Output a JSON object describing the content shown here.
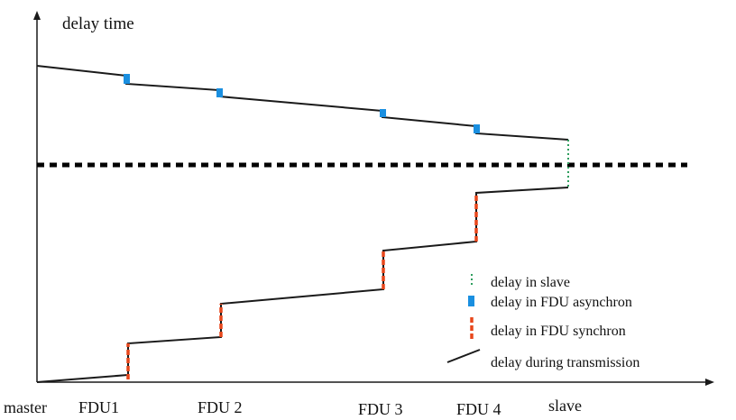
{
  "diagram": {
    "y_axis_label": "delay time",
    "x_axis_labels": [
      "master",
      "FDU1",
      "FDU 2",
      "FDU 3",
      "FDU 4",
      "slave"
    ],
    "legend": {
      "slave": "delay in slave",
      "async": "delay in FDU asynchron",
      "sync": "delay in FDU synchron",
      "transmission": "delay during transmission"
    },
    "colors": {
      "line": "#1a1a1a",
      "dotted": "#000000",
      "slave": "#2e9e5e",
      "async": "#1a8fe0",
      "sync": "#e8471b"
    }
  }
}
